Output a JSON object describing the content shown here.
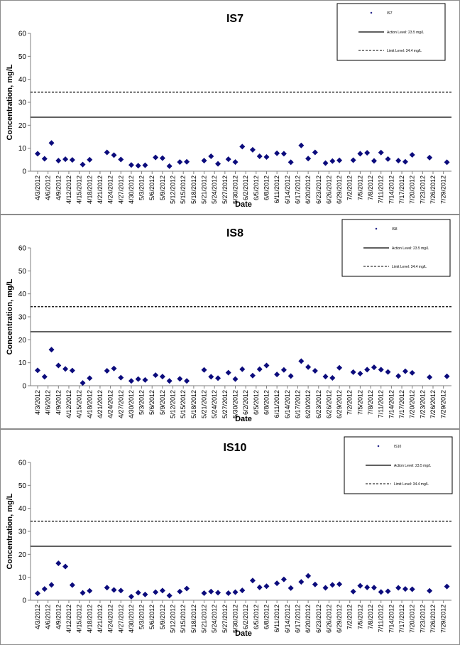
{
  "chart_data": [
    {
      "type": "scatter",
      "title": "IS7",
      "xlabel": "Date",
      "ylabel": "Concentration, mg/L",
      "ylim": [
        0,
        60
      ],
      "yticks": [
        "0",
        "10",
        "20",
        "30",
        "40",
        "50",
        "60"
      ],
      "xticks": [
        "4/3/2012",
        "4/6/2012",
        "4/9/2012",
        "4/12/2012",
        "4/15/2012",
        "4/18/2012",
        "4/21/2012",
        "4/24/2012",
        "4/27/2012",
        "4/30/2012",
        "5/3/2012",
        "5/6/2012",
        "5/9/2012",
        "5/12/2012",
        "5/15/2012",
        "5/18/2012",
        "5/21/2012",
        "5/24/2012",
        "5/27/2012",
        "5/30/2012",
        "6/2/2012",
        "6/5/2012",
        "6/8/2012",
        "6/11/2012",
        "6/14/2012",
        "6/17/2012",
        "6/20/2012",
        "6/23/2012",
        "6/26/2012",
        "6/29/2012",
        "7/2/2012",
        "7/5/2012",
        "7/8/2012",
        "7/11/2012",
        "7/14/2012",
        "7/17/2012",
        "7/20/2012",
        "7/23/2012",
        "7/26/2012",
        "7/29/2012"
      ],
      "legend_position": "top-right",
      "series": [
        {
          "name": "IS7",
          "points": [
            [
              "4/3/2012",
              7.6
            ],
            [
              "4/5/2012",
              5.4
            ],
            [
              "4/7/2012",
              12.3
            ],
            [
              "4/9/2012",
              4.6
            ],
            [
              "4/11/2012",
              5.2
            ],
            [
              "4/13/2012",
              4.9
            ],
            [
              "4/16/2012",
              2.9
            ],
            [
              "4/18/2012",
              5.0
            ],
            [
              "4/23/2012",
              8.2
            ],
            [
              "4/25/2012",
              7.0
            ],
            [
              "4/27/2012",
              5.1
            ],
            [
              "4/30/2012",
              2.7
            ],
            [
              "5/2/2012",
              2.4
            ],
            [
              "5/4/2012",
              2.6
            ],
            [
              "5/7/2012",
              6.0
            ],
            [
              "5/9/2012",
              5.7
            ],
            [
              "5/11/2012",
              2.2
            ],
            [
              "5/14/2012",
              4.0
            ],
            [
              "5/16/2012",
              4.1
            ],
            [
              "5/21/2012",
              4.6
            ],
            [
              "5/23/2012",
              6.5
            ],
            [
              "5/25/2012",
              3.2
            ],
            [
              "5/28/2012",
              5.2
            ],
            [
              "5/30/2012",
              4.0
            ],
            [
              "6/1/2012",
              10.7
            ],
            [
              "6/4/2012",
              9.3
            ],
            [
              "6/6/2012",
              6.5
            ],
            [
              "6/8/2012",
              6.2
            ],
            [
              "6/11/2012",
              7.8
            ],
            [
              "6/13/2012",
              7.6
            ],
            [
              "6/15/2012",
              3.9
            ],
            [
              "6/18/2012",
              11.2
            ],
            [
              "6/20/2012",
              5.5
            ],
            [
              "6/22/2012",
              8.2
            ],
            [
              "6/25/2012",
              3.5
            ],
            [
              "6/27/2012",
              4.4
            ],
            [
              "6/29/2012",
              4.7
            ],
            [
              "7/3/2012",
              4.8
            ],
            [
              "7/5/2012",
              7.6
            ],
            [
              "7/7/2012",
              8.0
            ],
            [
              "7/9/2012",
              4.5
            ],
            [
              "7/11/2012",
              8.1
            ],
            [
              "7/13/2012",
              5.3
            ],
            [
              "7/16/2012",
              4.6
            ],
            [
              "7/18/2012",
              4.1
            ],
            [
              "7/20/2012",
              7.1
            ],
            [
              "7/25/2012",
              5.9
            ],
            [
              "7/30/2012",
              3.9
            ]
          ]
        },
        {
          "name": "Action Level: 23.5 mg/L",
          "y": 23.5,
          "style": "solid"
        },
        {
          "name": "Limit Level: 34.4 mg/L",
          "y": 34.4,
          "style": "dashed"
        }
      ],
      "grid": false
    },
    {
      "type": "scatter",
      "title": "IS8",
      "xlabel": "Date",
      "ylabel": "Concentration, mg/L",
      "ylim": [
        0,
        60
      ],
      "yticks": [
        "0",
        "10",
        "20",
        "30",
        "40",
        "50",
        "60"
      ],
      "xticks": [
        "4/3/2012",
        "4/6/2012",
        "4/9/2012",
        "4/12/2012",
        "4/15/2012",
        "4/18/2012",
        "4/21/2012",
        "4/24/2012",
        "4/27/2012",
        "4/30/2012",
        "5/3/2012",
        "5/6/2012",
        "5/9/2012",
        "5/12/2012",
        "5/15/2012",
        "5/18/2012",
        "5/21/2012",
        "5/24/2012",
        "5/27/2012",
        "5/30/2012",
        "6/2/2012",
        "6/5/2012",
        "6/8/2012",
        "6/11/2012",
        "6/14/2012",
        "6/17/2012",
        "6/20/2012",
        "6/23/2012",
        "6/26/2012",
        "6/29/2012",
        "7/2/2012",
        "7/5/2012",
        "7/8/2012",
        "7/11/2012",
        "7/14/2012",
        "7/17/2012",
        "7/20/2012",
        "7/23/2012",
        "7/26/2012",
        "7/29/2012"
      ],
      "legend_position": "top-right",
      "series": [
        {
          "name": "IS8",
          "points": [
            [
              "4/3/2012",
              6.7
            ],
            [
              "4/5/2012",
              3.9
            ],
            [
              "4/7/2012",
              15.7
            ],
            [
              "4/9/2012",
              8.8
            ],
            [
              "4/11/2012",
              7.3
            ],
            [
              "4/13/2012",
              6.6
            ],
            [
              "4/16/2012",
              1.2
            ],
            [
              "4/18/2012",
              3.3
            ],
            [
              "4/23/2012",
              6.5
            ],
            [
              "4/25/2012",
              7.5
            ],
            [
              "4/27/2012",
              3.5
            ],
            [
              "4/30/2012",
              2.1
            ],
            [
              "5/2/2012",
              2.9
            ],
            [
              "5/4/2012",
              2.5
            ],
            [
              "5/7/2012",
              4.6
            ],
            [
              "5/9/2012",
              4.0
            ],
            [
              "5/11/2012",
              2.1
            ],
            [
              "5/14/2012",
              3.0
            ],
            [
              "5/16/2012",
              2.1
            ],
            [
              "5/21/2012",
              6.9
            ],
            [
              "5/23/2012",
              3.9
            ],
            [
              "5/25/2012",
              3.3
            ],
            [
              "5/28/2012",
              5.7
            ],
            [
              "5/30/2012",
              2.9
            ],
            [
              "6/1/2012",
              7.2
            ],
            [
              "6/4/2012",
              4.4
            ],
            [
              "6/6/2012",
              7.2
            ],
            [
              "6/8/2012",
              8.8
            ],
            [
              "6/11/2012",
              4.9
            ],
            [
              "6/13/2012",
              6.9
            ],
            [
              "6/15/2012",
              4.2
            ],
            [
              "6/18/2012",
              10.7
            ],
            [
              "6/20/2012",
              8.1
            ],
            [
              "6/22/2012",
              6.5
            ],
            [
              "6/25/2012",
              4.0
            ],
            [
              "6/27/2012",
              3.4
            ],
            [
              "6/29/2012",
              7.8
            ],
            [
              "7/3/2012",
              5.9
            ],
            [
              "7/5/2012",
              5.3
            ],
            [
              "7/7/2012",
              7.0
            ],
            [
              "7/9/2012",
              8.0
            ],
            [
              "7/11/2012",
              7.0
            ],
            [
              "7/13/2012",
              6.0
            ],
            [
              "7/16/2012",
              4.2
            ],
            [
              "7/18/2012",
              6.3
            ],
            [
              "7/20/2012",
              5.6
            ],
            [
              "7/25/2012",
              3.7
            ],
            [
              "7/30/2012",
              4.1
            ]
          ]
        },
        {
          "name": "Action Level: 23.5 mg/L",
          "y": 23.5,
          "style": "solid"
        },
        {
          "name": "Limit Level: 34.4 mg/L",
          "y": 34.4,
          "style": "dashed"
        }
      ],
      "grid": false
    },
    {
      "type": "scatter",
      "title": "IS10",
      "xlabel": "Date",
      "ylabel": "Concentration, mg/L",
      "ylim": [
        0,
        60
      ],
      "yticks": [
        "0",
        "10",
        "20",
        "30",
        "40",
        "50",
        "60"
      ],
      "xticks": [
        "4/3/2012",
        "4/6/2012",
        "4/9/2012",
        "4/12/2012",
        "4/15/2012",
        "4/18/2012",
        "4/21/2012",
        "4/24/2012",
        "4/27/2012",
        "4/30/2012",
        "5/3/2012",
        "5/6/2012",
        "5/9/2012",
        "5/12/2012",
        "5/15/2012",
        "5/18/2012",
        "5/21/2012",
        "5/24/2012",
        "5/27/2012",
        "5/30/2012",
        "6/2/2012",
        "6/5/2012",
        "6/8/2012",
        "6/11/2012",
        "6/14/2012",
        "6/17/2012",
        "6/20/2012",
        "6/23/2012",
        "6/26/2012",
        "6/29/2012",
        "7/2/2012",
        "7/5/2012",
        "7/8/2012",
        "7/11/2012",
        "7/14/2012",
        "7/17/2012",
        "7/20/2012",
        "7/23/2012",
        "7/26/2012",
        "7/29/2012"
      ],
      "legend_position": "top-right",
      "series": [
        {
          "name": "IS10",
          "points": [
            [
              "4/3/2012",
              3.0
            ],
            [
              "4/5/2012",
              4.9
            ],
            [
              "4/7/2012",
              6.7
            ],
            [
              "4/9/2012",
              16.1
            ],
            [
              "4/11/2012",
              14.7
            ],
            [
              "4/13/2012",
              6.6
            ],
            [
              "4/16/2012",
              3.2
            ],
            [
              "4/18/2012",
              4.1
            ],
            [
              "4/23/2012",
              5.5
            ],
            [
              "4/25/2012",
              4.5
            ],
            [
              "4/27/2012",
              4.2
            ],
            [
              "4/30/2012",
              1.6
            ],
            [
              "5/2/2012",
              3.3
            ],
            [
              "5/4/2012",
              2.5
            ],
            [
              "5/7/2012",
              3.5
            ],
            [
              "5/9/2012",
              4.2
            ],
            [
              "5/11/2012",
              2.0
            ],
            [
              "5/14/2012",
              3.8
            ],
            [
              "5/16/2012",
              5.1
            ],
            [
              "5/21/2012",
              3.1
            ],
            [
              "5/23/2012",
              3.8
            ],
            [
              "5/25/2012",
              3.3
            ],
            [
              "5/28/2012",
              3.1
            ],
            [
              "5/30/2012",
              3.5
            ],
            [
              "6/1/2012",
              4.3
            ],
            [
              "6/4/2012",
              8.6
            ],
            [
              "6/6/2012",
              5.6
            ],
            [
              "6/8/2012",
              6.1
            ],
            [
              "6/11/2012",
              7.4
            ],
            [
              "6/13/2012",
              9.1
            ],
            [
              "6/15/2012",
              5.3
            ],
            [
              "6/18/2012",
              8.0
            ],
            [
              "6/20/2012",
              10.6
            ],
            [
              "6/22/2012",
              6.9
            ],
            [
              "6/25/2012",
              5.4
            ],
            [
              "6/27/2012",
              6.7
            ],
            [
              "6/29/2012",
              7.0
            ],
            [
              "7/3/2012",
              3.8
            ],
            [
              "7/5/2012",
              6.3
            ],
            [
              "7/7/2012",
              5.6
            ],
            [
              "7/9/2012",
              5.5
            ],
            [
              "7/11/2012",
              3.6
            ],
            [
              "7/13/2012",
              3.9
            ],
            [
              "7/16/2012",
              5.4
            ],
            [
              "7/18/2012",
              4.9
            ],
            [
              "7/20/2012",
              4.8
            ],
            [
              "7/25/2012",
              4.1
            ],
            [
              "7/30/2012",
              6.0
            ]
          ]
        },
        {
          "name": "Action Level: 23.5 mg/L",
          "y": 23.5,
          "style": "solid"
        },
        {
          "name": "Limit Level: 34.4 mg/L",
          "y": 34.4,
          "style": "dashed"
        }
      ],
      "grid": false
    }
  ],
  "colors": {
    "marker": "#0b0b7c",
    "line": "#000000",
    "axis": "#7f7f7f",
    "frame": "#8c8c8c"
  }
}
